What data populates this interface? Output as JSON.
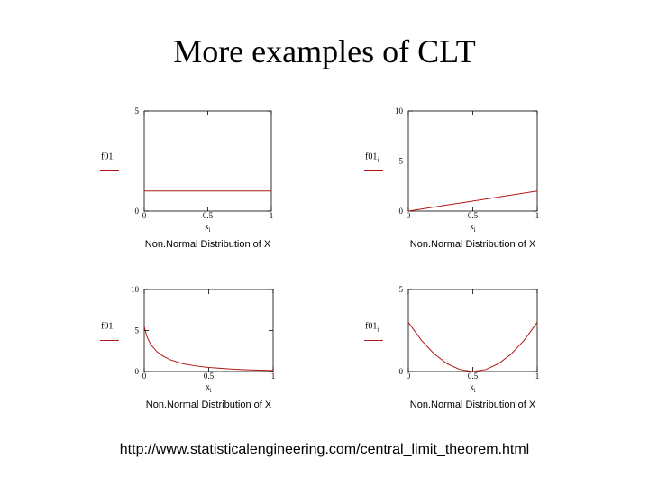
{
  "title": "More examples of CLT",
  "source_url": "http://www.statisticalengineering.com/central_limit_theorem.html",
  "colors": {
    "curve": "#b01818",
    "axis": "#000000"
  },
  "chart_data": [
    {
      "type": "line",
      "ylabel": "f01_i",
      "xlabel": "x_i",
      "caption": "Non.Normal Distribution of X",
      "xlim": [
        0,
        1
      ],
      "ylim": [
        0,
        5
      ],
      "x_ticks": [
        "0",
        "0.5",
        "1"
      ],
      "y_ticks": [
        "0",
        "5"
      ],
      "series": [
        {
          "x": [
            0,
            1
          ],
          "y": [
            1,
            1
          ]
        }
      ]
    },
    {
      "type": "line",
      "ylabel": "f01_i",
      "xlabel": "x_i",
      "caption": "Non.Normal Distribution of X",
      "xlim": [
        0,
        1
      ],
      "ylim": [
        0,
        10
      ],
      "x_ticks": [
        "0",
        "0.5",
        "1"
      ],
      "y_ticks": [
        "0",
        "5",
        "10"
      ],
      "series": [
        {
          "x": [
            0,
            1
          ],
          "y": [
            0,
            2
          ]
        }
      ]
    },
    {
      "type": "line",
      "ylabel": "f01_i",
      "xlabel": "x_i",
      "caption": "Non.Normal Distribution of X",
      "xlim": [
        0,
        1
      ],
      "ylim": [
        0,
        10
      ],
      "x_ticks": [
        "0",
        "0.5",
        "1"
      ],
      "y_ticks": [
        "0",
        "5",
        "10"
      ],
      "series": [
        {
          "x": [
            0,
            0.02,
            0.05,
            0.1,
            0.15,
            0.2,
            0.3,
            0.4,
            0.5,
            0.6,
            0.7,
            0.8,
            0.9,
            1.0
          ],
          "y": [
            5.5,
            4.3,
            3.3,
            2.4,
            1.85,
            1.45,
            0.95,
            0.68,
            0.5,
            0.38,
            0.28,
            0.21,
            0.16,
            0.12
          ]
        }
      ]
    },
    {
      "type": "line",
      "ylabel": "f01_i",
      "xlabel": "x_i",
      "caption": "Non.Normal Distribution of X",
      "xlim": [
        0,
        1
      ],
      "ylim": [
        0,
        5
      ],
      "x_ticks": [
        "0",
        "0.5",
        "1"
      ],
      "y_ticks": [
        "0",
        "5"
      ],
      "series": [
        {
          "x": [
            0,
            0.1,
            0.2,
            0.3,
            0.4,
            0.5,
            0.6,
            0.7,
            0.8,
            0.9,
            1.0
          ],
          "y": [
            3,
            1.92,
            1.08,
            0.48,
            0.12,
            0,
            0.12,
            0.48,
            1.08,
            1.92,
            3
          ]
        }
      ]
    }
  ]
}
